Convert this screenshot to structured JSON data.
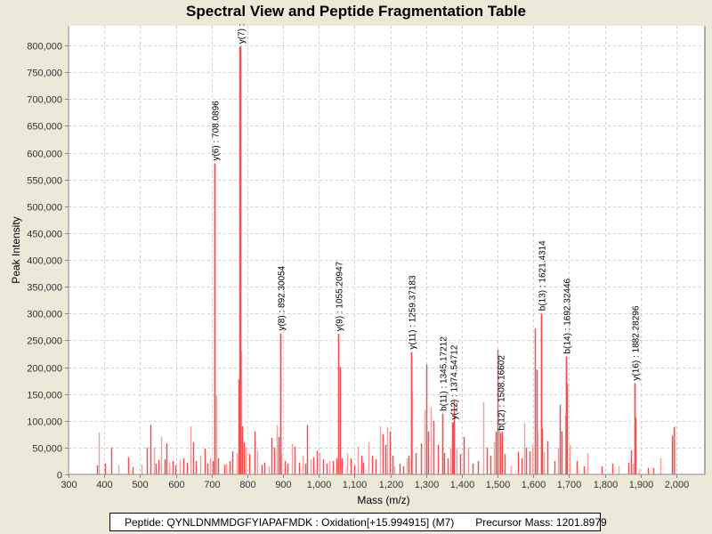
{
  "chart_data": {
    "type": "bar",
    "title": "Spectral View and Peptide Fragmentation Table",
    "xlabel": "Mass (m/z)",
    "ylabel": "Peak Intensity",
    "xlim": [
      300,
      2080
    ],
    "ylim": [
      0,
      820000
    ],
    "grid": true,
    "x_ticks": [
      300,
      400,
      500,
      600,
      700,
      800,
      900,
      1000,
      1100,
      1200,
      1300,
      1400,
      1500,
      1600,
      1700,
      1800,
      1900,
      2000
    ],
    "x_tick_labels": [
      "300",
      "400",
      "500",
      "600",
      "700",
      "800",
      "900",
      "1,000",
      "1,100",
      "1,200",
      "1,300",
      "1,400",
      "1,500",
      "1,600",
      "1,700",
      "1,800",
      "1,900",
      "2,000"
    ],
    "y_ticks": [
      0,
      50000,
      100000,
      150000,
      200000,
      250000,
      300000,
      350000,
      400000,
      450000,
      500000,
      550000,
      600000,
      650000,
      700000,
      750000,
      800000
    ],
    "y_tick_labels": [
      "0",
      "50,000",
      "100,000",
      "150,000",
      "200,000",
      "250,000",
      "300,000",
      "350,000",
      "400,000",
      "450,000",
      "500,000",
      "550,000",
      "600,000",
      "650,000",
      "700,000",
      "750,000",
      "800,000"
    ],
    "annotated_peaks": [
      {
        "label": "y(6) : 708.0896",
        "mz": 708.09,
        "intensity": 580000
      },
      {
        "label": "y(7) :",
        "mz": 779.5,
        "intensity": 798000
      },
      {
        "label": "y(8) : 892.30054",
        "mz": 892.3,
        "intensity": 263000
      },
      {
        "label": "y(9) : 1055.20947",
        "mz": 1055.2,
        "intensity": 262000
      },
      {
        "label": "y(11) : 1259.37183",
        "mz": 1259.37,
        "intensity": 228000
      },
      {
        "label": "b(11) : 1345.17212",
        "mz": 1345.17,
        "intensity": 113000
      },
      {
        "label": "y(12) : 1374.54712",
        "mz": 1374.55,
        "intensity": 97000
      },
      {
        "label": "b(12) : 1508.16602",
        "mz": 1508.17,
        "intensity": 77000
      },
      {
        "label": "b(13) : 1621.4314",
        "mz": 1621.43,
        "intensity": 300000
      },
      {
        "label": "b(14) : 1692.32446",
        "mz": 1692.32,
        "intensity": 220000
      },
      {
        "label": "y(16) : 1882.28296",
        "mz": 1882.28,
        "intensity": 170000
      }
    ],
    "peaks": [
      [
        380,
        17000
      ],
      [
        385,
        78000
      ],
      [
        402,
        20000
      ],
      [
        420,
        50000
      ],
      [
        440,
        18000
      ],
      [
        468,
        32000
      ],
      [
        478,
        14000
      ],
      [
        505,
        18000
      ],
      [
        520,
        50000
      ],
      [
        528,
        92000
      ],
      [
        538,
        50000
      ],
      [
        545,
        20000
      ],
      [
        552,
        27000
      ],
      [
        560,
        70000
      ],
      [
        568,
        28000
      ],
      [
        575,
        58000
      ],
      [
        582,
        22000
      ],
      [
        590,
        25000
      ],
      [
        598,
        17000
      ],
      [
        610,
        28000
      ],
      [
        622,
        30000
      ],
      [
        632,
        22000
      ],
      [
        642,
        90000
      ],
      [
        648,
        60000
      ],
      [
        655,
        25000
      ],
      [
        668,
        35000
      ],
      [
        680,
        48000
      ],
      [
        688,
        20000
      ],
      [
        695,
        30000
      ],
      [
        702,
        25000
      ],
      [
        708,
        580000
      ],
      [
        712,
        148000
      ],
      [
        718,
        30000
      ],
      [
        735,
        18000
      ],
      [
        740,
        20000
      ],
      [
        750,
        25000
      ],
      [
        758,
        43000
      ],
      [
        770,
        40000
      ],
      [
        775,
        177000
      ],
      [
        779,
        798000
      ],
      [
        782,
        230000
      ],
      [
        786,
        90000
      ],
      [
        790,
        60000
      ],
      [
        795,
        50000
      ],
      [
        805,
        38000
      ],
      [
        820,
        80000
      ],
      [
        828,
        44000
      ],
      [
        840,
        18000
      ],
      [
        848,
        22000
      ],
      [
        860,
        15000
      ],
      [
        868,
        68000
      ],
      [
        875,
        50000
      ],
      [
        882,
        92000
      ],
      [
        888,
        70000
      ],
      [
        892,
        263000
      ],
      [
        896,
        38000
      ],
      [
        905,
        25000
      ],
      [
        912,
        20000
      ],
      [
        925,
        57000
      ],
      [
        932,
        52000
      ],
      [
        945,
        22000
      ],
      [
        955,
        35000
      ],
      [
        962,
        20000
      ],
      [
        968,
        92000
      ],
      [
        978,
        28000
      ],
      [
        985,
        32000
      ],
      [
        995,
        44000
      ],
      [
        1002,
        40000
      ],
      [
        1012,
        28000
      ],
      [
        1022,
        20000
      ],
      [
        1030,
        25000
      ],
      [
        1040,
        25000
      ],
      [
        1048,
        30000
      ],
      [
        1055,
        262000
      ],
      [
        1058,
        200000
      ],
      [
        1065,
        30000
      ],
      [
        1080,
        40000
      ],
      [
        1090,
        30000
      ],
      [
        1098,
        17000
      ],
      [
        1108,
        52000
      ],
      [
        1118,
        35000
      ],
      [
        1125,
        22000
      ],
      [
        1140,
        60000
      ],
      [
        1148,
        35000
      ],
      [
        1158,
        28000
      ],
      [
        1170,
        90000
      ],
      [
        1178,
        75000
      ],
      [
        1185,
        55000
      ],
      [
        1192,
        88000
      ],
      [
        1198,
        80000
      ],
      [
        1205,
        35000
      ],
      [
        1212,
        15000
      ],
      [
        1225,
        20000
      ],
      [
        1235,
        15000
      ],
      [
        1245,
        30000
      ],
      [
        1252,
        35000
      ],
      [
        1259,
        228000
      ],
      [
        1262,
        155000
      ],
      [
        1270,
        40000
      ],
      [
        1285,
        58000
      ],
      [
        1295,
        120000
      ],
      [
        1300,
        205000
      ],
      [
        1305,
        80000
      ],
      [
        1312,
        125000
      ],
      [
        1320,
        100000
      ],
      [
        1332,
        55000
      ],
      [
        1345,
        113000
      ],
      [
        1350,
        40000
      ],
      [
        1360,
        30000
      ],
      [
        1368,
        48000
      ],
      [
        1374,
        97000
      ],
      [
        1378,
        137000
      ],
      [
        1386,
        50000
      ],
      [
        1395,
        38000
      ],
      [
        1405,
        70000
      ],
      [
        1418,
        50000
      ],
      [
        1430,
        20000
      ],
      [
        1445,
        25000
      ],
      [
        1460,
        135000
      ],
      [
        1470,
        50000
      ],
      [
        1480,
        35000
      ],
      [
        1490,
        60000
      ],
      [
        1495,
        80000
      ],
      [
        1500,
        233000
      ],
      [
        1505,
        95000
      ],
      [
        1512,
        80000
      ],
      [
        1520,
        38000
      ],
      [
        1538,
        16000
      ],
      [
        1558,
        42000
      ],
      [
        1568,
        30000
      ],
      [
        1575,
        95000
      ],
      [
        1580,
        50000
      ],
      [
        1590,
        43000
      ],
      [
        1598,
        55000
      ],
      [
        1605,
        272000
      ],
      [
        1608,
        195000
      ],
      [
        1612,
        80000
      ],
      [
        1621,
        300000
      ],
      [
        1625,
        85000
      ],
      [
        1630,
        42000
      ],
      [
        1640,
        62000
      ],
      [
        1658,
        25000
      ],
      [
        1668,
        50000
      ],
      [
        1675,
        130000
      ],
      [
        1680,
        80000
      ],
      [
        1690,
        110000
      ],
      [
        1692,
        220000
      ],
      [
        1695,
        170000
      ],
      [
        1702,
        55000
      ],
      [
        1720,
        25000
      ],
      [
        1740,
        15000
      ],
      [
        1750,
        40000
      ],
      [
        1790,
        15000
      ],
      [
        1820,
        20000
      ],
      [
        1838,
        16000
      ],
      [
        1865,
        22000
      ],
      [
        1872,
        45000
      ],
      [
        1878,
        20000
      ],
      [
        1882,
        170000
      ],
      [
        1885,
        105000
      ],
      [
        1895,
        10000
      ],
      [
        1920,
        12000
      ],
      [
        1935,
        12000
      ],
      [
        1955,
        30000
      ],
      [
        1988,
        72000
      ],
      [
        1992,
        88000
      ],
      [
        1995,
        90000
      ]
    ]
  },
  "info": {
    "peptide": "Peptide: QYNLDNMMDGFYIAPAFMDK : Oxidation[+15.994915] (M7)",
    "precursor": "Precursor Mass: 1201.8979"
  },
  "colors": {
    "peak": "#f05050",
    "peak_light": "#f8a0a0",
    "grid": "#d0d0d0"
  }
}
